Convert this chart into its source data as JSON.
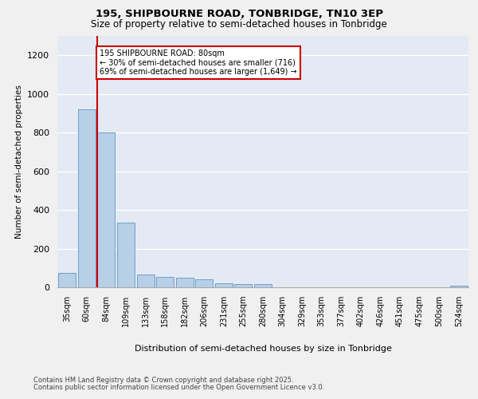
{
  "title1": "195, SHIPBOURNE ROAD, TONBRIDGE, TN10 3EP",
  "title2": "Size of property relative to semi-detached houses in Tonbridge",
  "xlabel": "Distribution of semi-detached houses by size in Tonbridge",
  "ylabel": "Number of semi-detached properties",
  "categories": [
    "35sqm",
    "60sqm",
    "84sqm",
    "109sqm",
    "133sqm",
    "158sqm",
    "182sqm",
    "206sqm",
    "231sqm",
    "255sqm",
    "280sqm",
    "304sqm",
    "329sqm",
    "353sqm",
    "377sqm",
    "402sqm",
    "426sqm",
    "451sqm",
    "475sqm",
    "500sqm",
    "524sqm"
  ],
  "values": [
    75,
    920,
    800,
    335,
    65,
    55,
    50,
    40,
    20,
    15,
    15,
    0,
    0,
    0,
    0,
    0,
    0,
    0,
    0,
    0,
    10
  ],
  "bar_color": "#b8cfe8",
  "bar_edge_color": "#6ea0c8",
  "bg_color": "#e4eaf4",
  "grid_color": "#ffffff",
  "annotation_title": "195 SHIPBOURNE ROAD: 80sqm",
  "annotation_line1": "← 30% of semi-detached houses are smaller (716)",
  "annotation_line2": "69% of semi-detached houses are larger (1,649) →",
  "vline_color": "#cc0000",
  "annotation_box_color": "#cc0000",
  "ylim": [
    0,
    1300
  ],
  "yticks": [
    0,
    200,
    400,
    600,
    800,
    1000,
    1200
  ],
  "footer1": "Contains HM Land Registry data © Crown copyright and database right 2025.",
  "footer2": "Contains public sector information licensed under the Open Government Licence v3.0.",
  "fig_bg": "#f0f0f0"
}
